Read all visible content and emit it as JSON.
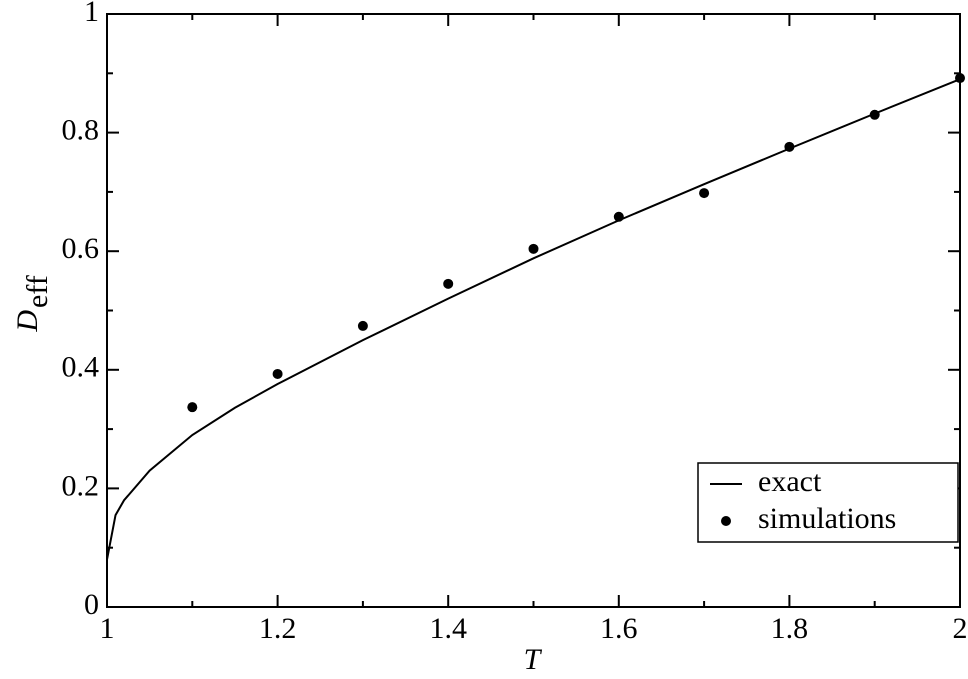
{
  "chart_data": {
    "type": "line",
    "x_label": "T",
    "y_label": "D",
    "y_label_sub": "eff",
    "xlim": [
      1,
      2
    ],
    "ylim": [
      0,
      1
    ],
    "xticks": [
      1,
      1.2,
      1.4,
      1.6,
      1.8,
      2
    ],
    "yticks": [
      0,
      0.2,
      0.4,
      0.6,
      0.8,
      1
    ],
    "xticks_minor": [
      1.1,
      1.3,
      1.5,
      1.7,
      1.9
    ],
    "yticks_minor": [
      0.1,
      0.3,
      0.5,
      0.7,
      0.9
    ],
    "legend": "lower right",
    "series": [
      {
        "name": "exact",
        "style": "line",
        "color": "#000000",
        "x": [
          1,
          1.01,
          1.02,
          1.05,
          1.1,
          1.15,
          1.2,
          1.3,
          1.4,
          1.5,
          1.6,
          1.7,
          1.8,
          1.9,
          2
        ],
        "values": [
          0.08,
          0.155,
          0.18,
          0.23,
          0.29,
          0.336,
          0.376,
          0.45,
          0.52,
          0.588,
          0.652,
          0.713,
          0.773,
          0.832,
          0.89
        ]
      },
      {
        "name": "simulations",
        "style": "points",
        "color": "#000000",
        "x": [
          1.1,
          1.2,
          1.3,
          1.4,
          1.5,
          1.6,
          1.7,
          1.8,
          1.9,
          2
        ],
        "values": [
          0.337,
          0.393,
          0.474,
          0.545,
          0.604,
          0.658,
          0.698,
          0.776,
          0.83,
          0.892
        ]
      }
    ]
  }
}
